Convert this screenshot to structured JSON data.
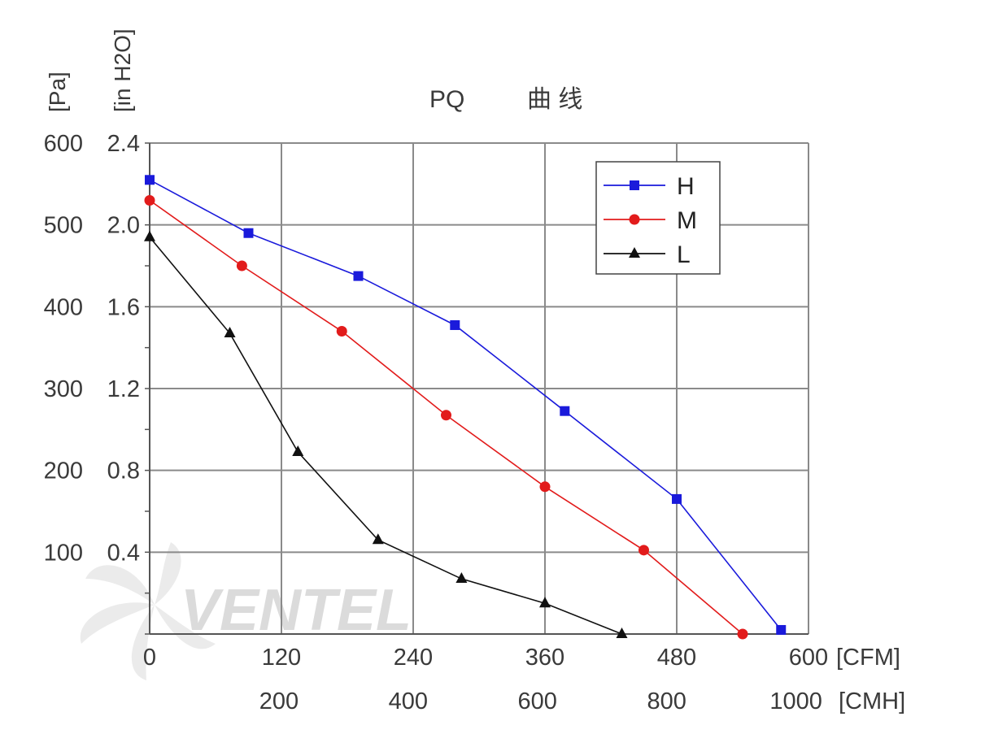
{
  "chart_data": {
    "type": "line",
    "title": "PQ",
    "title_suffix": "曲 线",
    "y_left_unit_1": "[Pa]",
    "y_left_unit_2": "[in H2O]",
    "x_unit_1": "[CFM]",
    "x_unit_2": "[CMH]",
    "x_range_cfm": [
      0,
      600
    ],
    "y_range_inh2o": [
      0,
      2.4
    ],
    "x_ticks_cfm": [
      "0",
      "120",
      "240",
      "360",
      "480",
      "600"
    ],
    "x_ticks_cmh": [
      "200",
      "400",
      "600",
      "800",
      "1000"
    ],
    "y_ticks_pa": [
      "600",
      "500",
      "400",
      "300",
      "200",
      "100"
    ],
    "y_ticks_inh2o": [
      "2.4",
      "2.0",
      "1.6",
      "1.2",
      "0.8",
      "0.4"
    ],
    "grid": true,
    "legend_position": "top-right",
    "watermark": "VENTEL",
    "series": [
      {
        "name": "H",
        "color": "#1a1adb",
        "marker": "square",
        "points": [
          [
            0,
            2.22
          ],
          [
            90,
            1.96
          ],
          [
            190,
            1.75
          ],
          [
            278,
            1.51
          ],
          [
            378,
            1.09
          ],
          [
            480,
            0.66
          ],
          [
            575,
            0.02
          ]
        ]
      },
      {
        "name": "M",
        "color": "#e21b1b",
        "marker": "circle",
        "points": [
          [
            0,
            2.12
          ],
          [
            84,
            1.8
          ],
          [
            175,
            1.48
          ],
          [
            270,
            1.07
          ],
          [
            360,
            0.72
          ],
          [
            450,
            0.41
          ],
          [
            540,
            0.0
          ]
        ]
      },
      {
        "name": "L",
        "color": "#111111",
        "marker": "triangle",
        "points": [
          [
            0,
            1.94
          ],
          [
            73,
            1.47
          ],
          [
            135,
            0.89
          ],
          [
            208,
            0.46
          ],
          [
            284,
            0.27
          ],
          [
            360,
            0.15
          ],
          [
            430,
            0.0
          ]
        ]
      }
    ]
  }
}
